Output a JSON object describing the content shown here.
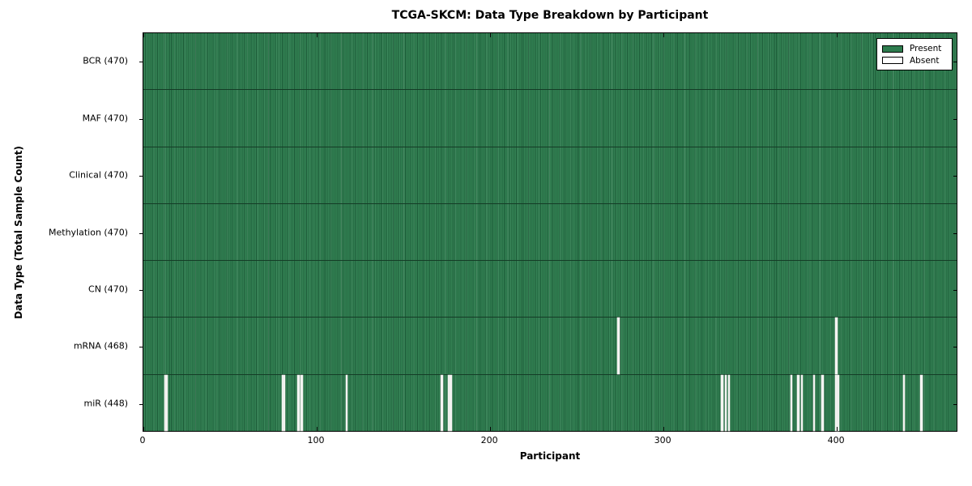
{
  "title": "TCGA-SKCM: Data Type Breakdown by Participant",
  "colors": {
    "present_green": "#2e7c4e",
    "present_dark_edge": "#1d5c39",
    "present_light_edge": "#3c8a5c",
    "absent_white": "#f4f4f2",
    "row_divider": "#143c26",
    "frame": "#000000",
    "background": "#ffffff"
  },
  "legend": {
    "position": "upper-right",
    "entries": [
      {
        "label": "Present",
        "color": "#2e7c4e"
      },
      {
        "label": "Absent",
        "color": "#ffffff"
      }
    ]
  },
  "chart_data": {
    "type": "heatmap",
    "title": "TCGA-SKCM: Data Type Breakdown by Participant",
    "xlabel": "Participant",
    "ylabel": "Data Type (Total Sample Count)",
    "x_range": [
      0,
      470
    ],
    "x_ticks": [
      0,
      100,
      200,
      300,
      400
    ],
    "n_participants": 470,
    "grid": false,
    "rows": [
      {
        "data_type": "BCR",
        "label": "BCR (470)",
        "total_samples": 470,
        "absent_participants": []
      },
      {
        "data_type": "MAF",
        "label": "MAF (470)",
        "total_samples": 470,
        "absent_participants": []
      },
      {
        "data_type": "Clinical",
        "label": "Clinical (470)",
        "total_samples": 470,
        "absent_participants": []
      },
      {
        "data_type": "Methylation",
        "label": "Methylation (470)",
        "total_samples": 470,
        "absent_participants": []
      },
      {
        "data_type": "CN",
        "label": "CN (470)",
        "total_samples": 470,
        "absent_participants": []
      },
      {
        "data_type": "mRNA",
        "label": "mRNA (468)",
        "total_samples": 468,
        "absent_participants": [
          274,
          400
        ]
      },
      {
        "data_type": "miR",
        "label": "miR (448)",
        "total_samples": 448,
        "absent_participants": [
          12,
          13,
          80,
          81,
          89,
          91,
          117,
          172,
          176,
          177,
          334,
          336,
          338,
          374,
          378,
          380,
          387,
          392,
          400,
          401,
          439,
          449
        ]
      }
    ]
  }
}
